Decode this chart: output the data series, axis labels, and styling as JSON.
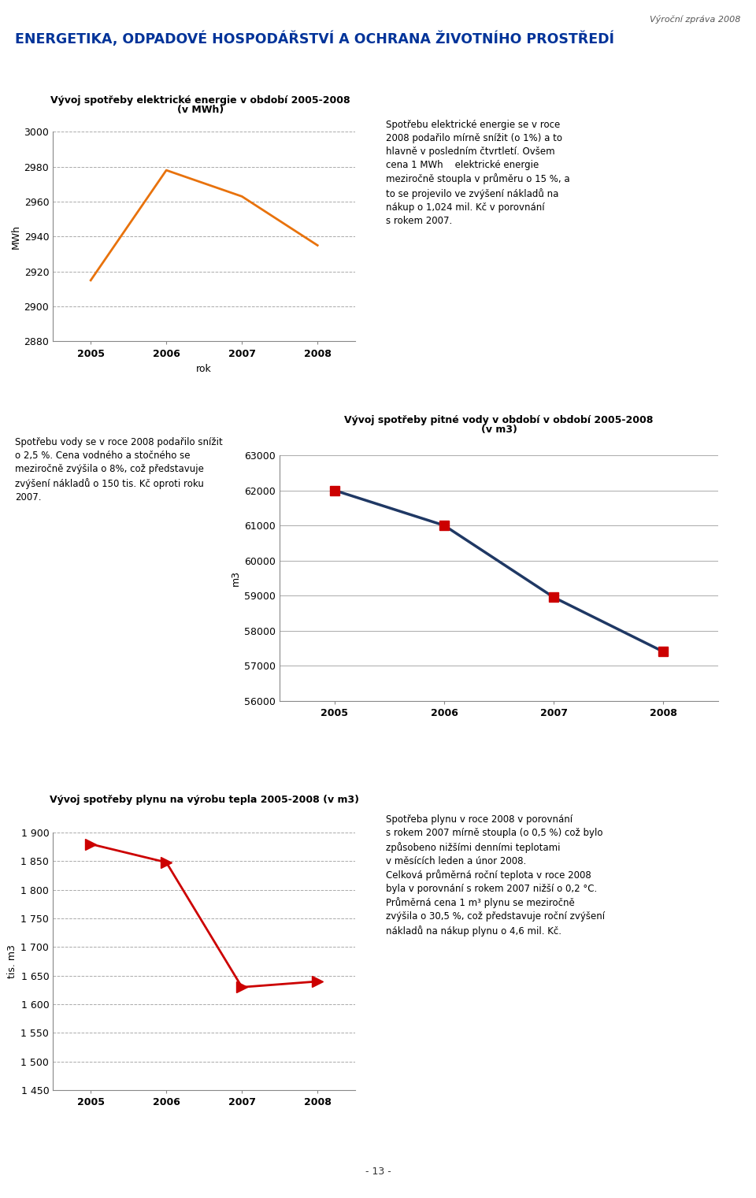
{
  "page_header": "Výroční zpráva 2008",
  "main_title": "ENERGETIKA, ODPADOVÉ HOSPODÁŘSTVÍ A OCHRANA ŽIVOTNÍHO PROSTŘEDÍ",
  "main_title_color": "#003399",
  "chart1": {
    "title_line1": "Vývoj spotřeby elektrické energie v období 2005-2008",
    "title_line2": "(v MWh)",
    "years": [
      2005,
      2006,
      2007,
      2008
    ],
    "values": [
      2915,
      2978,
      2963,
      2935
    ],
    "line_color": "#E8720C",
    "ylim": [
      2880,
      3000
    ],
    "yticks": [
      2880,
      2900,
      2920,
      2940,
      2960,
      2980,
      3000
    ],
    "ylabel": "MWh",
    "xlabel": "rok",
    "grid_color": "#AAAAAA",
    "text": "Spotřebu elektrické energie se v roce\n2008 podařilo mírně snížit (o 1%) a to\nhlavně v posledním čtvrtletí. Ovšem\ncena 1 MWh    elektrické energie\nmeziročně stoupla v průměru o 15 %, a\nto se projevilo ve zvýšení nákladů na\nnákup o 1,024 mil. Kč v porovnání\ns rokem 2007."
  },
  "chart2": {
    "title_line1": "Vývoj spotřeby pitné vody v období v období 2005-2008",
    "title_line2": "(v m3)",
    "years": [
      2005,
      2006,
      2007,
      2008
    ],
    "values": [
      62000,
      61000,
      58950,
      57400
    ],
    "line_color": "#1F3864",
    "marker_color": "#CC0000",
    "marker_size": 8,
    "ylim": [
      56000,
      63000
    ],
    "yticks": [
      56000,
      57000,
      58000,
      59000,
      60000,
      61000,
      62000,
      63000
    ],
    "ylabel": "m3",
    "grid_color": "#AAAAAA",
    "text": "Spotřebu vody se v roce 2008 podařilo snížit\no 2,5 %. Cena vodného a stočného se\nmeziročně zvýšila o 8%, což představuje\nzvýšení nákladů o 150 tis. Kč oproti roku\n2007."
  },
  "chart3": {
    "title": "Vývoj spotřeby plynu na výrobu tepla 2005-2008 (v m3)",
    "years": [
      2005,
      2006,
      2007,
      2008
    ],
    "values": [
      1880,
      1848,
      1630,
      1640
    ],
    "line_color": "#CC0000",
    "marker_color": "#CC0000",
    "marker_size": 10,
    "ylim": [
      1450,
      1900
    ],
    "yticks": [
      1450,
      1500,
      1550,
      1600,
      1650,
      1700,
      1750,
      1800,
      1850,
      1900
    ],
    "ylabel": "tis. m3",
    "grid_color": "#AAAAAA",
    "text": "Spotřeba plynu v roce 2008 v porovnání\ns rokem 2007 mírně stoupla (o 0,5 %) což bylo\nzpůsobeno nižšími denními teplotami\nv měsících leden a únor 2008.\nCelková průměrná roční teplota v roce 2008\nbyla v porovnání s rokem 2007 nižší o 0,2 °C.\nPrůměrná cena 1 m³ plynu se meziročně\nzvýšila o 30,5 %, což představuje roční zvýšení\nnákladů na nákup plynu o 4,6 mil. Kč."
  },
  "footer": "- 13 -",
  "bg_color": "#FFFFFF"
}
